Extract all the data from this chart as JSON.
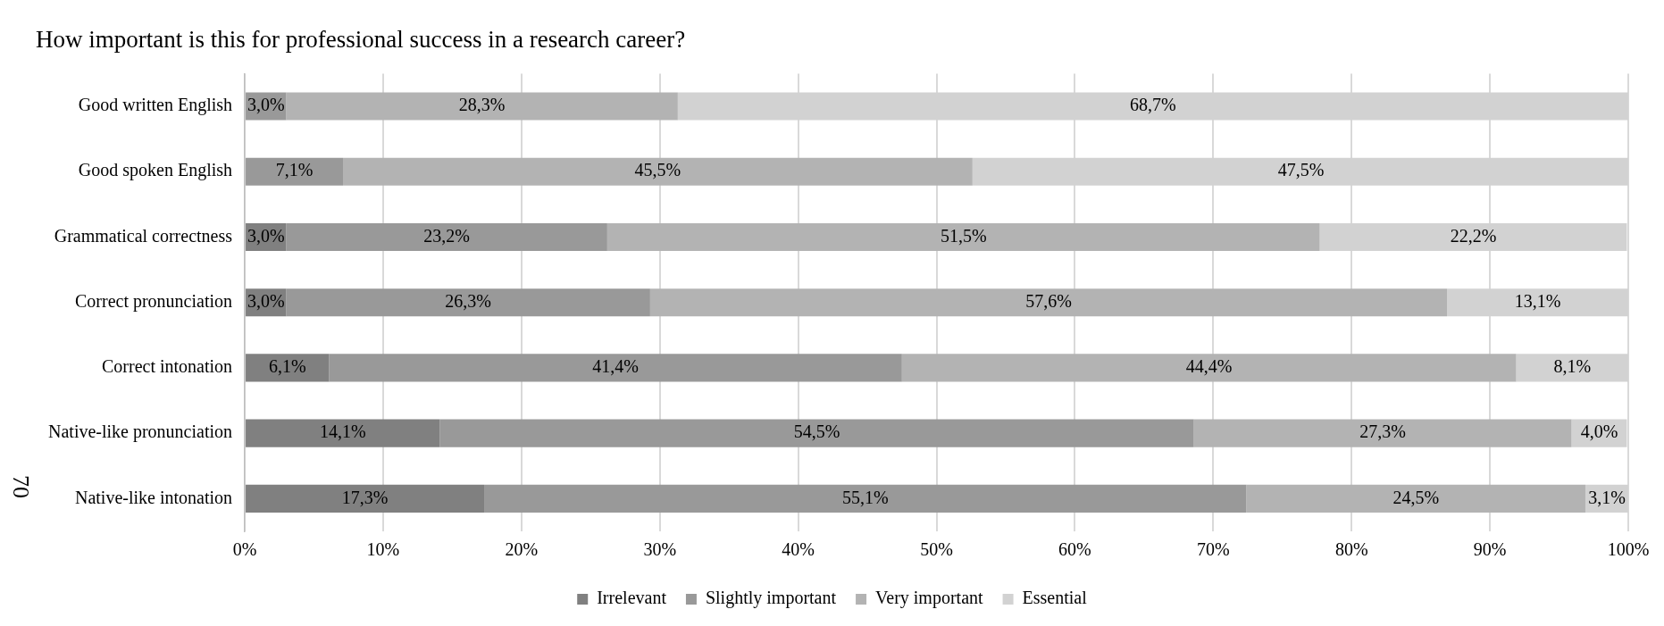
{
  "chart_data": {
    "type": "bar",
    "orientation": "horizontal",
    "stacked": true,
    "title": "How important is this for professional success in a research career?",
    "categories": [
      "Good written English",
      "Good spoken English",
      "Grammatical correctness",
      "Correct pronunciation",
      "Correct intonation",
      "Native-like pronunciation",
      "Native-like intonation"
    ],
    "series": [
      {
        "name": "Irrelevant",
        "color": "#808080",
        "values": [
          0,
          0,
          3.0,
          3.0,
          6.1,
          14.1,
          17.3
        ],
        "value_labels": [
          null,
          null,
          "3,0%",
          "3,0%",
          "6,1%",
          "14,1%",
          "17,3%"
        ]
      },
      {
        "name": "Slightly important",
        "color": "#999999",
        "values": [
          3.0,
          7.1,
          23.2,
          26.3,
          41.4,
          54.5,
          55.1
        ],
        "value_labels": [
          "3,0%",
          "7,1%",
          "23,2%",
          "26,3%",
          "41,4%",
          "54,5%",
          "55,1%"
        ]
      },
      {
        "name": "Very important",
        "color": "#b3b3b3",
        "values": [
          28.3,
          45.5,
          51.5,
          57.6,
          44.4,
          27.3,
          24.5
        ],
        "value_labels": [
          "28,3%",
          "45,5%",
          "51,5%",
          "57,6%",
          "44,4%",
          "27,3%",
          "24,5%"
        ]
      },
      {
        "name": "Essential",
        "color": "#d2d2d2",
        "values": [
          68.7,
          47.5,
          22.2,
          13.1,
          8.1,
          4.0,
          3.1
        ],
        "value_labels": [
          "68,7%",
          "47,5%",
          "22,2%",
          "13,1%",
          "8,1%",
          "4,0%",
          "3,1%"
        ]
      }
    ],
    "xlim": [
      0,
      100
    ],
    "xticks": [
      {
        "value": 0,
        "label": "0%"
      },
      {
        "value": 10,
        "label": "10%"
      },
      {
        "value": 20,
        "label": "20%"
      },
      {
        "value": 30,
        "label": "30%"
      },
      {
        "value": 40,
        "label": "40%"
      },
      {
        "value": 50,
        "label": "50%"
      },
      {
        "value": 60,
        "label": "60%"
      },
      {
        "value": 70,
        "label": "70%"
      },
      {
        "value": 80,
        "label": "80%"
      },
      {
        "value": 90,
        "label": "90%"
      },
      {
        "value": 100,
        "label": "100%"
      }
    ],
    "grid": "x",
    "legend": "bottom",
    "annotations": [
      "70"
    ]
  }
}
